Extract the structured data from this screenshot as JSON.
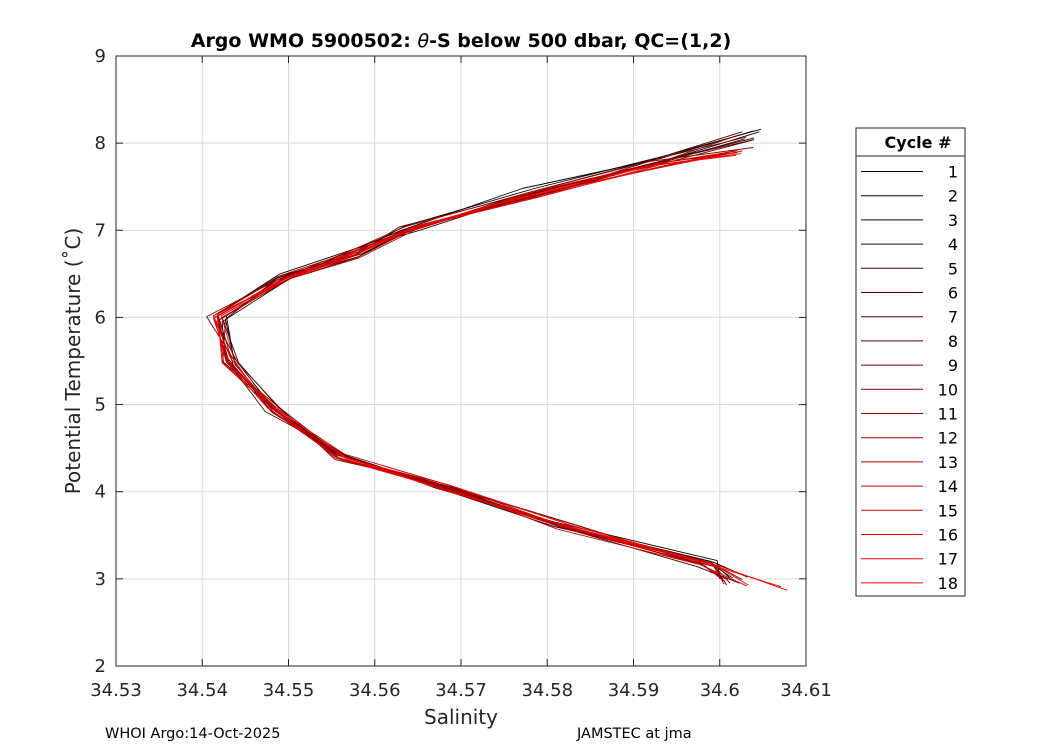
{
  "chart_data": {
    "type": "line",
    "title": "Argo WMO 5900502: θ-S below 500 dbar,  QC=(1,2)",
    "xlabel": "Salinity",
    "ylabel": "Potential Temperature (˚C)",
    "xlim": [
      34.53,
      34.61
    ],
    "ylim": [
      2,
      9
    ],
    "xticks": [
      "34.53",
      "34.54",
      "34.55",
      "34.56",
      "34.57",
      "34.58",
      "34.59",
      "34.6",
      "34.61"
    ],
    "yticks": [
      "2",
      "3",
      "4",
      "5",
      "6",
      "7",
      "8",
      "9"
    ],
    "grid": true,
    "legend": {
      "title": "Cycle #",
      "position": "right"
    },
    "colors": {
      "first": "#000000",
      "last": "#ff0000",
      "grid": "#d9d9d9",
      "axis": "#262626"
    },
    "series": [
      {
        "name": "1",
        "x": [
          34.6048,
          34.5935,
          34.5785,
          34.5635,
          34.558,
          34.5495,
          34.5428,
          34.5436,
          34.5484,
          34.5568,
          34.5672,
          34.5825,
          34.5993,
          34.6012
        ],
        "y": [
          8.16,
          7.85,
          7.48,
          7.05,
          6.75,
          6.45,
          6.02,
          5.55,
          4.93,
          4.4,
          4.06,
          3.58,
          3.17,
          3.01
        ]
      },
      {
        "name": "2",
        "x": [
          34.6039,
          34.593,
          34.5771,
          34.5631,
          34.5584,
          34.549,
          34.5418,
          34.5428,
          34.5481,
          34.556,
          34.5672,
          34.5808,
          34.5993,
          34.6032
        ],
        "y": [
          8.14,
          7.82,
          7.48,
          7.0,
          6.81,
          6.5,
          6.04,
          5.55,
          4.91,
          4.42,
          4.05,
          3.6,
          3.19,
          3.02
        ]
      },
      {
        "name": "3",
        "x": [
          34.6046,
          34.5937,
          34.5779,
          34.5636,
          34.5585,
          34.5487,
          34.5427,
          34.5438,
          34.5482,
          34.5557,
          34.5671,
          34.5809,
          34.5997,
          34.6
        ],
        "y": [
          8.13,
          7.8,
          7.42,
          6.98,
          6.73,
          6.45,
          5.98,
          5.46,
          4.96,
          4.45,
          4.04,
          3.65,
          3.21,
          3.0
        ]
      },
      {
        "name": "4",
        "x": [
          34.604,
          34.5922,
          34.5789,
          34.5652,
          34.5575,
          34.5502,
          34.5423,
          34.5427,
          34.548,
          34.5557,
          34.5682,
          34.583,
          34.5978,
          34.6003
        ],
        "y": [
          8.06,
          7.77,
          7.44,
          7.0,
          6.78,
          6.45,
          5.95,
          5.51,
          5.01,
          4.42,
          4.07,
          3.63,
          3.17,
          3.01
        ]
      },
      {
        "name": "5",
        "x": [
          34.6029,
          34.5941,
          34.5788,
          34.5643,
          34.558,
          34.5503,
          34.5423,
          34.5442,
          34.5488,
          34.5559,
          34.5675,
          34.581,
          34.599,
          34.6008
        ],
        "y": [
          8.05,
          7.8,
          7.4,
          7.03,
          6.69,
          6.45,
          6.0,
          5.48,
          4.97,
          4.38,
          4.07,
          3.63,
          3.2,
          2.93
        ]
      },
      {
        "name": "6",
        "x": [
          34.6026,
          34.5919,
          34.5781,
          34.564,
          34.5584,
          34.5489,
          34.5418,
          34.5436,
          34.5481,
          34.5561,
          34.569,
          34.581,
          34.5974,
          34.6023
        ],
        "y": [
          8.13,
          7.8,
          7.44,
          7.0,
          6.76,
          6.46,
          6.04,
          5.45,
          4.96,
          4.37,
          4.05,
          3.61,
          3.14,
          2.95
        ]
      },
      {
        "name": "7",
        "x": [
          34.604,
          34.5928,
          34.5778,
          34.5629,
          34.5577,
          34.5488,
          34.5413,
          34.5428,
          34.5473,
          34.5568,
          34.5675,
          34.5824,
          34.5975,
          34.6004
        ],
        "y": [
          8.04,
          7.75,
          7.42,
          7.04,
          6.72,
          6.47,
          6.02,
          5.51,
          4.92,
          4.41,
          4.06,
          3.6,
          3.2,
          3.0
        ]
      },
      {
        "name": "8",
        "x": [
          34.6039,
          34.5935,
          34.5784,
          34.5644,
          34.5582,
          34.5486,
          34.5427,
          34.5424,
          34.5489,
          34.556,
          34.5672,
          34.5816,
          34.5987,
          34.6015
        ],
        "y": [
          8.04,
          7.8,
          7.42,
          7.01,
          6.7,
          6.43,
          5.98,
          5.49,
          4.97,
          4.42,
          4.06,
          3.6,
          3.19,
          3.01
        ]
      },
      {
        "name": "9",
        "x": [
          34.6031,
          34.5931,
          34.5786,
          34.5644,
          34.5575,
          34.5498,
          34.5416,
          34.5441,
          34.549,
          34.5554,
          34.5672,
          34.5823,
          34.5994,
          34.6012
        ],
        "y": [
          8.07,
          7.83,
          7.38,
          7.03,
          6.75,
          6.46,
          5.95,
          5.48,
          4.96,
          4.37,
          4.1,
          3.57,
          3.14,
          2.95
        ]
      },
      {
        "name": "10",
        "x": [
          34.6021,
          34.5918,
          34.5784,
          34.563,
          34.5579,
          34.5489,
          34.5405,
          34.5436,
          34.5479,
          34.5569,
          34.5682,
          34.5821,
          34.5995,
          34.6026
        ],
        "y": [
          8.09,
          7.74,
          7.38,
          6.99,
          6.72,
          6.44,
          6.01,
          5.52,
          4.93,
          4.39,
          4.02,
          3.58,
          3.16,
          2.99
        ]
      },
      {
        "name": "11",
        "x": [
          34.6039,
          34.5919,
          34.5777,
          34.5635,
          34.5571,
          34.5497,
          34.5417,
          34.5432,
          34.5485,
          34.5556,
          34.569,
          34.5828,
          34.5977,
          34.6009
        ],
        "y": [
          7.95,
          7.79,
          7.43,
          7.04,
          6.76,
          6.47,
          6.01,
          5.45,
          4.94,
          4.42,
          4.03,
          3.58,
          3.17,
          2.99
        ]
      },
      {
        "name": "12",
        "x": [
          34.602,
          34.5936,
          34.5779,
          34.5641,
          34.5581,
          34.5491,
          34.5418,
          34.543,
          34.5476,
          34.556,
          34.5685,
          34.5825,
          34.5979,
          34.6006
        ],
        "y": [
          7.89,
          7.78,
          7.42,
          6.99,
          6.78,
          6.48,
          6.04,
          5.47,
          4.96,
          4.37,
          4.05,
          3.64,
          3.17,
          2.97
        ]
      },
      {
        "name": "13",
        "x": [
          34.6021,
          34.5935,
          34.5784,
          34.5648,
          34.5573,
          34.5503,
          34.5418,
          34.5425,
          34.5487,
          34.5565,
          34.5681,
          34.5813,
          34.5991,
          34.6005
        ],
        "y": [
          7.92,
          7.74,
          7.4,
          7.05,
          6.75,
          6.46,
          5.96,
          5.47,
          4.94,
          4.43,
          4.09,
          3.63,
          3.18,
          2.94
        ]
      },
      {
        "name": "14",
        "x": [
          34.6026,
          34.5936,
          34.5773,
          34.5648,
          34.5581,
          34.55,
          34.5418,
          34.5423,
          34.548,
          34.5555,
          34.5676,
          34.5812,
          34.5983,
          34.6004
        ],
        "y": [
          7.91,
          7.73,
          7.39,
          7.01,
          6.68,
          6.44,
          6.04,
          5.48,
          4.96,
          4.4,
          4.08,
          3.57,
          3.15,
          2.98
        ]
      },
      {
        "name": "15",
        "x": [
          34.6019,
          34.5924,
          34.5782,
          34.565,
          34.5572,
          34.5498,
          34.5413,
          34.543,
          34.5483,
          34.5554,
          34.5686,
          34.5821,
          34.5978,
          34.6031
        ],
        "y": [
          7.91,
          7.76,
          7.44,
          7.03,
          6.7,
          6.45,
          5.99,
          5.5,
          4.96,
          4.39,
          4.02,
          3.6,
          3.16,
          2.92
        ]
      },
      {
        "name": "16",
        "x": [
          34.6011,
          34.5931,
          34.5784,
          34.5638,
          34.5571,
          34.5504,
          34.5413,
          34.5433,
          34.5482,
          34.556,
          34.5682,
          34.5809,
          34.5992,
          34.6033
        ],
        "y": [
          7.89,
          7.73,
          7.38,
          7.0,
          6.73,
          6.46,
          6.02,
          5.53,
          4.92,
          4.38,
          4.03,
          3.62,
          3.17,
          2.93
        ]
      },
      {
        "name": "17",
        "x": [
          34.6025,
          34.5934,
          34.579,
          34.5641,
          34.5575,
          34.5501,
          34.5422,
          34.5438,
          34.5478,
          34.5567,
          34.5685,
          34.5829,
          34.5999,
          34.6078
        ],
        "y": [
          7.88,
          7.76,
          7.38,
          7.02,
          6.7,
          6.45,
          6.02,
          5.48,
          4.97,
          4.38,
          4.08,
          3.61,
          3.15,
          2.87
        ]
      },
      {
        "name": "18",
        "x": [
          34.6019,
          34.592,
          34.5788,
          34.5648,
          34.5583,
          34.55,
          34.5414,
          34.5428,
          34.5489,
          34.5565,
          34.5676,
          34.5815,
          34.5986,
          34.6071
        ],
        "y": [
          7.86,
          7.74,
          7.42,
          7.04,
          6.76,
          6.47,
          6.0,
          5.48,
          4.94,
          4.4,
          4.03,
          3.63,
          3.17,
          2.91
        ]
      }
    ]
  },
  "footer": {
    "left": "WHOI Argo:14-Oct-2025",
    "right": "JAMSTEC at jma"
  }
}
